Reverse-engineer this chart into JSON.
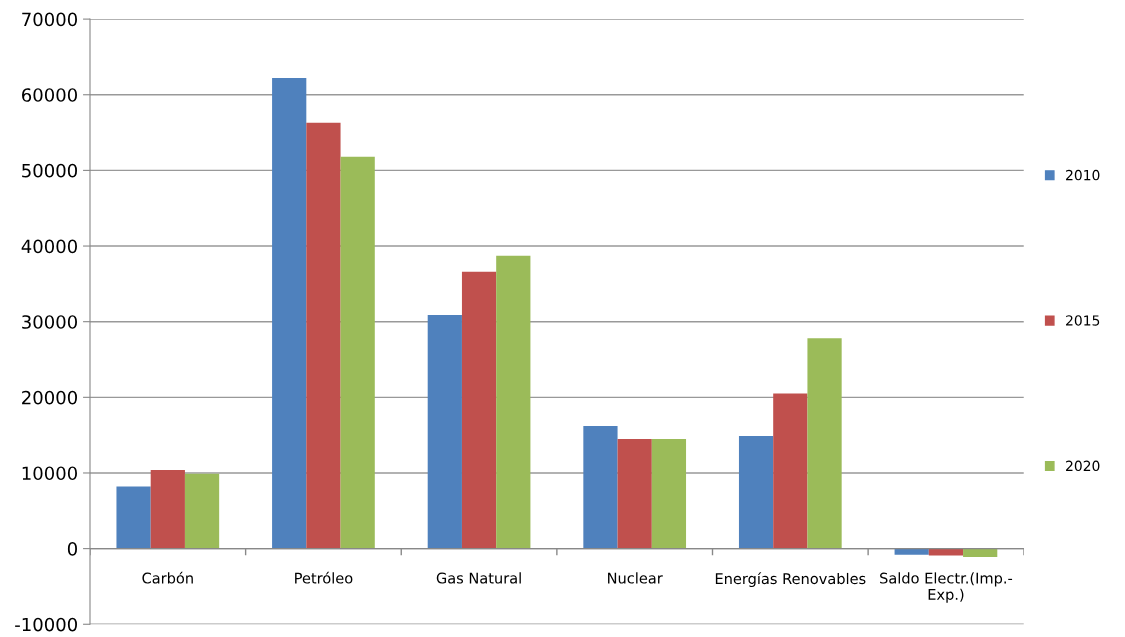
{
  "chart_data": {
    "type": "bar",
    "categories": [
      "Carbón",
      "Petróleo",
      "Gas Natural",
      "Nuclear",
      "Energías Renovables",
      "Saldo Electr.(Imp.-Exp.)"
    ],
    "series": [
      {
        "name": "2010",
        "color": "#4f81bd",
        "values": [
          8200,
          62200,
          30900,
          16200,
          14900,
          -800
        ]
      },
      {
        "name": "2015",
        "color": "#c0504d",
        "values": [
          10400,
          56300,
          36600,
          14500,
          20500,
          -900
        ]
      },
      {
        "name": "2020",
        "color": "#9bbb59",
        "values": [
          9900,
          51800,
          38700,
          14500,
          27800,
          -1100
        ]
      }
    ],
    "ylim": [
      -10000,
      70000
    ],
    "yticks": [
      -10000,
      0,
      10000,
      20000,
      30000,
      40000,
      50000,
      60000,
      70000
    ],
    "grid": "y",
    "legend": "right"
  }
}
